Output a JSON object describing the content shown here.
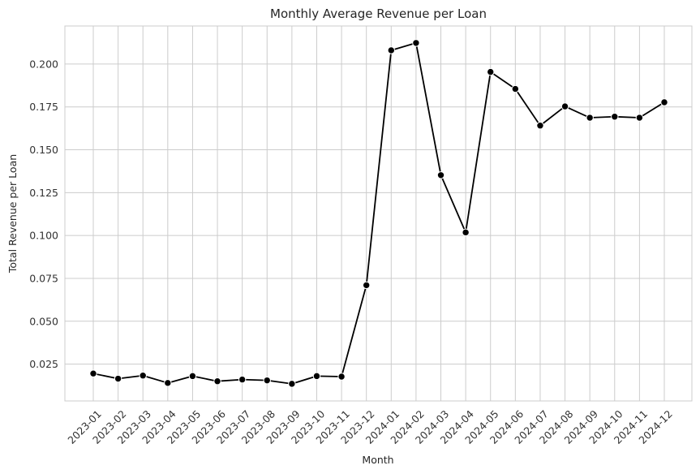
{
  "chart_data": {
    "type": "line",
    "title": "Monthly Average Revenue per Loan",
    "xlabel": "Month",
    "ylabel": "Total Revenue per Loan",
    "x": [
      "2023-01",
      "2023-02",
      "2023-03",
      "2023-04",
      "2023-05",
      "2023-06",
      "2023-07",
      "2023-08",
      "2023-09",
      "2023-10",
      "2023-11",
      "2023-12",
      "2024-01",
      "2024-02",
      "2024-03",
      "2024-04",
      "2024-05",
      "2024-06",
      "2024-07",
      "2024-08",
      "2024-09",
      "2024-10",
      "2024-11",
      "2024-12"
    ],
    "series": [
      {
        "values": [
          0.0195,
          0.0165,
          0.0183,
          0.014,
          0.018,
          0.015,
          0.016,
          0.0155,
          0.0135,
          0.018,
          0.0177,
          0.071,
          0.208,
          0.2123,
          0.1352,
          0.1018,
          0.1954,
          0.1855,
          0.1641,
          0.1753,
          0.1687,
          0.1693,
          0.1687,
          0.1777
        ],
        "color": "#000000",
        "marker": "circle"
      }
    ],
    "yticks": [
      0.025,
      0.05,
      0.075,
      0.1,
      0.125,
      0.15,
      0.175,
      0.2
    ],
    "ytick_labels": [
      "0.025",
      "0.050",
      "0.075",
      "0.100",
      "0.125",
      "0.150",
      "0.175",
      "0.200"
    ],
    "ylim": [
      0.0035,
      0.2222
    ],
    "grid": true,
    "background": "#ffffff",
    "grid_color": "#cccccc"
  }
}
